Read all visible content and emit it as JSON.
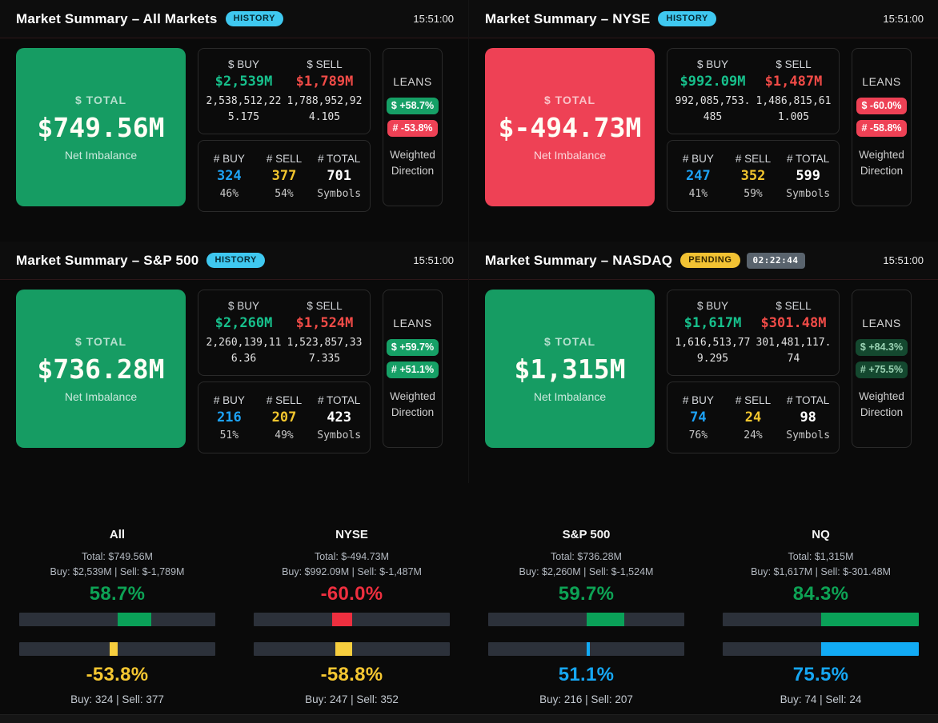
{
  "panels": [
    {
      "title": "Market Summary – All Markets",
      "status": "HISTORY",
      "time": "15:51:00",
      "total": {
        "label": "$ TOTAL",
        "value": "$749.56M",
        "sub": "Net Imbalance"
      },
      "dollars": {
        "buy_label": "$ BUY",
        "buy_value": "$2,539M",
        "buy_raw": "2,538,512,225.175",
        "sell_label": "$ SELL",
        "sell_value": "$1,789M",
        "sell_raw": "1,788,952,924.105"
      },
      "counts": {
        "buy_label": "# BUY",
        "buy_value": "324",
        "buy_pct": "46%",
        "sell_label": "# SELL",
        "sell_value": "377",
        "sell_pct": "54%",
        "total_label": "# TOTAL",
        "total_value": "701",
        "total_sub": "Symbols"
      },
      "leans": {
        "label": "LEANS",
        "dollar": "$ +58.7%",
        "count": "# -53.8%",
        "sub": "Weighted Direction"
      }
    },
    {
      "title": "Market Summary – NYSE",
      "status": "HISTORY",
      "time": "15:51:00",
      "total": {
        "label": "$ TOTAL",
        "value": "$-494.73M",
        "sub": "Net Imbalance"
      },
      "dollars": {
        "buy_label": "$ BUY",
        "buy_value": "$992.09M",
        "buy_raw": "992,085,753.485",
        "sell_label": "$ SELL",
        "sell_value": "$1,487M",
        "sell_raw": "1,486,815,611.005"
      },
      "counts": {
        "buy_label": "# BUY",
        "buy_value": "247",
        "buy_pct": "41%",
        "sell_label": "# SELL",
        "sell_value": "352",
        "sell_pct": "59%",
        "total_label": "# TOTAL",
        "total_value": "599",
        "total_sub": "Symbols"
      },
      "leans": {
        "label": "LEANS",
        "dollar": "$ -60.0%",
        "count": "# -58.8%",
        "sub": "Weighted Direction"
      }
    },
    {
      "title": "Market Summary – S&P 500",
      "status": "HISTORY",
      "time": "15:51:00",
      "total": {
        "label": "$ TOTAL",
        "value": "$736.28M",
        "sub": "Net Imbalance"
      },
      "dollars": {
        "buy_label": "$ BUY",
        "buy_value": "$2,260M",
        "buy_raw": "2,260,139,116.36",
        "sell_label": "$ SELL",
        "sell_value": "$1,524M",
        "sell_raw": "1,523,857,337.335"
      },
      "counts": {
        "buy_label": "# BUY",
        "buy_value": "216",
        "buy_pct": "51%",
        "sell_label": "# SELL",
        "sell_value": "207",
        "sell_pct": "49%",
        "total_label": "# TOTAL",
        "total_value": "423",
        "total_sub": "Symbols"
      },
      "leans": {
        "label": "LEANS",
        "dollar": "$ +59.7%",
        "count": "# +51.1%",
        "sub": "Weighted Direction"
      }
    },
    {
      "title": "Market Summary – NASDAQ",
      "status": "PENDING",
      "countdown": "02:22:44",
      "time": "15:51:00",
      "total": {
        "label": "$ TOTAL",
        "value": "$1,315M",
        "sub": "Net Imbalance"
      },
      "dollars": {
        "buy_label": "$ BUY",
        "buy_value": "$1,617M",
        "buy_raw": "1,616,513,779.295",
        "sell_label": "$ SELL",
        "sell_value": "$301.48M",
        "sell_raw": "301,481,117.74"
      },
      "counts": {
        "buy_label": "# BUY",
        "buy_value": "74",
        "buy_pct": "76%",
        "sell_label": "# SELL",
        "sell_value": "24",
        "sell_pct": "24%",
        "total_label": "# TOTAL",
        "total_value": "98",
        "total_sub": "Symbols"
      },
      "leans": {
        "label": "LEANS",
        "dollar": "$ +84.3%",
        "count": "# +75.5%",
        "sub": "Weighted Direction"
      }
    }
  ],
  "summary": {
    "columns": [
      {
        "name": "All",
        "total_line": "Total: $749.56M",
        "buy_sell_line": "Buy: $2,539M | Sell: $-1,789M",
        "dollar_lean": "58.7%",
        "count_lean": "-53.8%",
        "counts_line": "Buy: 324 | Sell: 377",
        "bars": [
          {
            "side": "right",
            "width_pct": 17.5,
            "color": "#0aa158"
          },
          {
            "side": "left",
            "width_pct": 3.8,
            "color": "#f7ce3e"
          }
        ]
      },
      {
        "name": "NYSE",
        "total_line": "Total: $-494.73M",
        "buy_sell_line": "Buy: $992.09M | Sell: $-1,487M",
        "dollar_lean": "-60.0%",
        "count_lean": "-58.8%",
        "counts_line": "Buy: 247 | Sell: 352",
        "bars": [
          {
            "side": "left",
            "width_pct": 10.0,
            "color": "#ee2f3f"
          },
          {
            "side": "left",
            "width_pct": 8.2,
            "color": "#f7ce3e"
          }
        ]
      },
      {
        "name": "S&P 500",
        "total_line": "Total: $736.28M",
        "buy_sell_line": "Buy: $2,260M | Sell: $-1,524M",
        "dollar_lean": "59.7%",
        "count_lean": "51.1%",
        "counts_line": "Buy: 216 | Sell: 207",
        "bars": [
          {
            "side": "right",
            "width_pct": 19.5,
            "color": "#0aa158"
          },
          {
            "side": "right",
            "width_pct": 2.0,
            "color": "#12aaf4"
          }
        ]
      },
      {
        "name": "NQ",
        "total_line": "Total: $1,315M",
        "buy_sell_line": "Buy: $1,617M | Sell: $-301.48M",
        "dollar_lean": "84.3%",
        "count_lean": "75.5%",
        "counts_line": "Buy: 74 | Sell: 24",
        "bars": [
          {
            "side": "right",
            "width_pct": 50.0,
            "color": "#0aa158"
          },
          {
            "side": "right",
            "width_pct": 50.0,
            "color": "#12aaf4"
          }
        ]
      }
    ]
  },
  "colors": {
    "positive_card": "#169c63",
    "negative_card": "#ee4155",
    "buy_green": "#17c08c",
    "sell_red": "#f14b47",
    "count_blue": "#1da2f5",
    "count_yellow": "#f3c62e",
    "history_badge": "#3fc8f0",
    "pending_badge": "#f2c233",
    "bar_track": "#2c313a"
  }
}
